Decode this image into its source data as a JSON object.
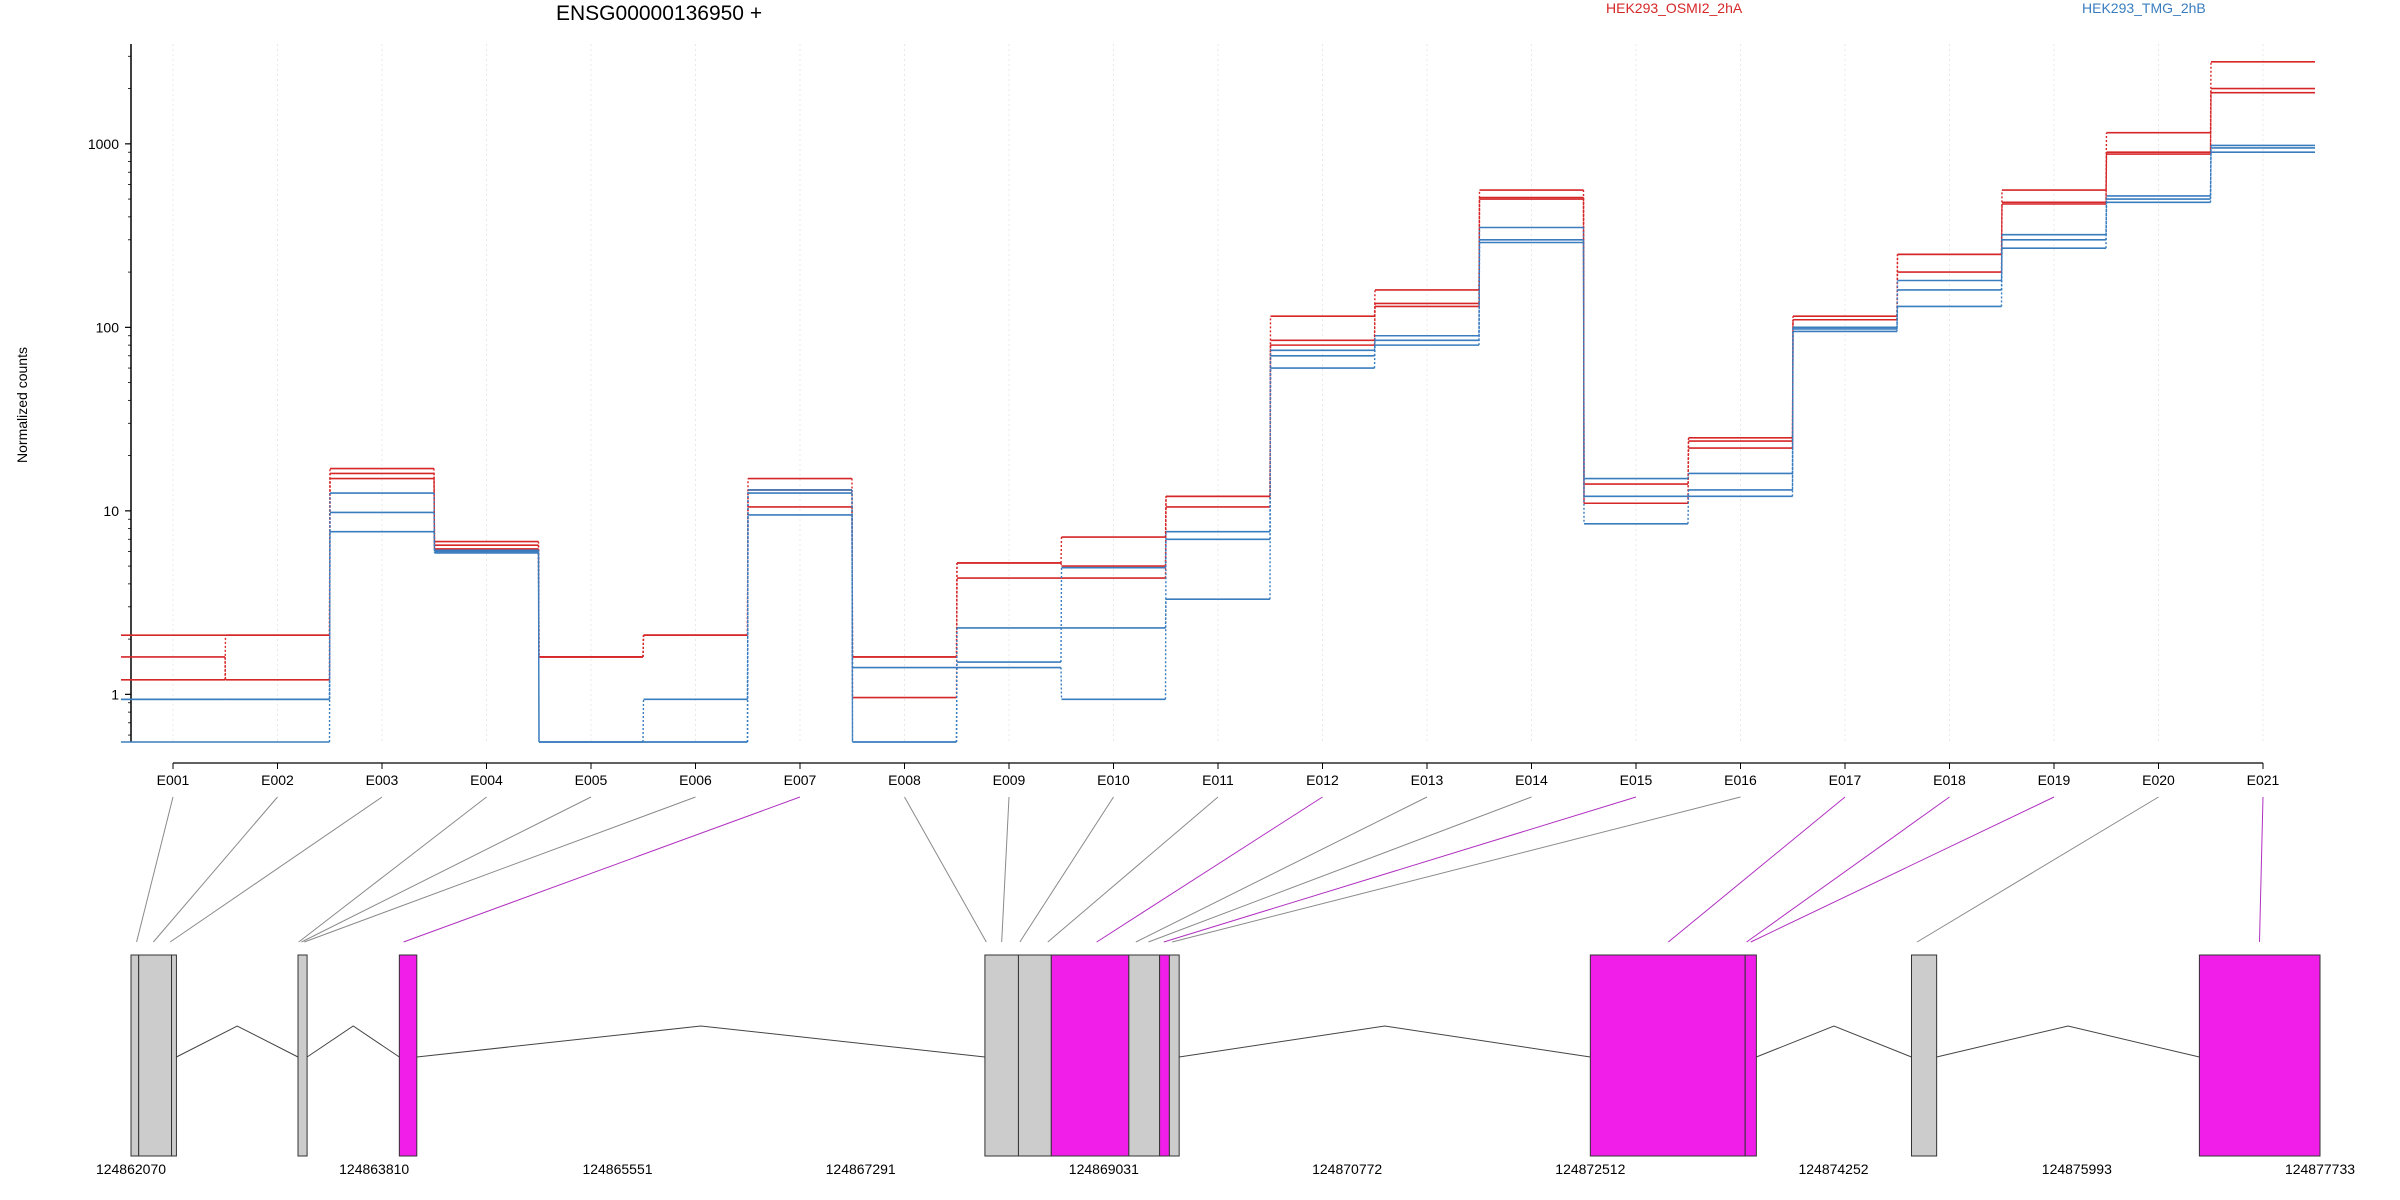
{
  "chart_data": {
    "type": "line",
    "title": "ENSG00000136950 +",
    "xlabel": "",
    "ylabel": "Normalized counts",
    "y_scale": "log",
    "ylim": [
      0.55,
      3500
    ],
    "y_ticks": [
      1,
      10,
      100,
      1000
    ],
    "y_tick_labels": [
      "1",
      "10",
      "100",
      "1000"
    ],
    "categories": [
      "E001",
      "E002",
      "E003",
      "E004",
      "E005",
      "E006",
      "E007",
      "E008",
      "E009",
      "E010",
      "E011",
      "E012",
      "E013",
      "E014",
      "E015",
      "E016",
      "E017",
      "E018",
      "E019",
      "E020",
      "E021"
    ],
    "grid": "vertical, at each exon",
    "legend": [
      {
        "label": "HEK293_OSMI2_2hA",
        "color": "#d62728"
      },
      {
        "label": "HEK293_TMG_2hB",
        "color": "#3a7dbf"
      }
    ],
    "series": [
      {
        "group": "HEK293_OSMI2_2hA",
        "color": "#d62728",
        "values": [
          1.6,
          1.2,
          15,
          6.2,
          1.6,
          2.1,
          13,
          0.96,
          4.3,
          4.3,
          10.5,
          80,
          135,
          510,
          11,
          22,
          110,
          200,
          470,
          880,
          1900
        ]
      },
      {
        "group": "HEK293_OSMI2_2hA",
        "color": "#d62728",
        "values": [
          2.1,
          2.1,
          17,
          6.8,
          1.6,
          2.1,
          15,
          1.6,
          5.2,
          7.2,
          12,
          115,
          160,
          560,
          14,
          25,
          115,
          250,
          560,
          1150,
          2800
        ]
      },
      {
        "group": "HEK293_OSMI2_2hA",
        "color": "#d62728",
        "values": [
          1.2,
          2.1,
          16,
          6.5,
          1.6,
          2.1,
          10.5,
          1.6,
          5.2,
          5.0,
          12,
          85,
          130,
          500,
          11,
          24,
          110,
          250,
          480,
          900,
          2000
        ]
      },
      {
        "group": "HEK293_TMG_2hB",
        "color": "#3a7dbf",
        "values": [
          0.94,
          0.94,
          12.5,
          6.0,
          0.55,
          0.55,
          12.5,
          0.55,
          1.5,
          4.9,
          7.7,
          70,
          90,
          290,
          12,
          12,
          95,
          160,
          300,
          520,
          950
        ]
      },
      {
        "group": "HEK293_TMG_2hB",
        "color": "#3a7dbf",
        "values": [
          0.55,
          0.55,
          7.7,
          5.9,
          0.55,
          0.94,
          9.5,
          0.55,
          2.3,
          2.3,
          3.3,
          60,
          80,
          300,
          8.5,
          13,
          98,
          130,
          270,
          480,
          900
        ]
      },
      {
        "group": "HEK293_TMG_2hB",
        "color": "#3a7dbf",
        "values": [
          0.94,
          0.94,
          9.8,
          6.1,
          0.55,
          0.55,
          13,
          1.4,
          1.4,
          0.94,
          7.0,
          75,
          85,
          350,
          15,
          16,
          100,
          180,
          320,
          500,
          980
        ]
      }
    ],
    "gene_model": {
      "coordinates_printed": [
        "124862070",
        "124863810",
        "124865551",
        "124867291",
        "124869031",
        "124870772",
        "124872512",
        "124874252",
        "124875993",
        "124877733"
      ],
      "range": [
        124862070,
        124877733
      ],
      "exons": [
        {
          "start": 124862070,
          "end": 124862125,
          "highlighted": false
        },
        {
          "start": 124862125,
          "end": 124862360,
          "highlighted": false
        },
        {
          "start": 124862360,
          "end": 124862395,
          "highlighted": false
        },
        {
          "start": 124863265,
          "end": 124863330,
          "highlighted": false
        },
        {
          "start": 124863990,
          "end": 124864115,
          "highlighted": true
        },
        {
          "start": 124868180,
          "end": 124868420,
          "highlighted": false
        },
        {
          "start": 124868420,
          "end": 124868655,
          "highlighted": false
        },
        {
          "start": 124868655,
          "end": 124869210,
          "highlighted": true
        },
        {
          "start": 124869210,
          "end": 124869430,
          "highlighted": false
        },
        {
          "start": 124869430,
          "end": 124869500,
          "highlighted": true
        },
        {
          "start": 124869500,
          "end": 124869570,
          "highlighted": false
        },
        {
          "start": 124872512,
          "end": 124873620,
          "highlighted": true
        },
        {
          "start": 124873620,
          "end": 124873700,
          "highlighted": true
        },
        {
          "start": 124874810,
          "end": 124874990,
          "highlighted": false
        },
        {
          "start": 124876870,
          "end": 124877733,
          "highlighted": true
        }
      ],
      "introns": [
        [
          124862395,
          124863265
        ],
        [
          124863330,
          124863990
        ],
        [
          124864115,
          124868180
        ],
        [
          124869570,
          124872512
        ],
        [
          124873700,
          124874810
        ],
        [
          124874990,
          124876870
        ]
      ],
      "exon_bin_links": [
        {
          "exon": "E001",
          "position": 124862110,
          "highlighted": false
        },
        {
          "exon": "E002",
          "position": 124862230,
          "highlighted": false
        },
        {
          "exon": "E003",
          "position": 124862350,
          "highlighted": false
        },
        {
          "exon": "E004",
          "position": 124863270,
          "highlighted": false
        },
        {
          "exon": "E005",
          "position": 124863290,
          "highlighted": false
        },
        {
          "exon": "E006",
          "position": 124863310,
          "highlighted": false
        },
        {
          "exon": "E007",
          "position": 124864020,
          "highlighted": true
        },
        {
          "exon": "E008",
          "position": 124868190,
          "highlighted": false
        },
        {
          "exon": "E009",
          "position": 124868300,
          "highlighted": false
        },
        {
          "exon": "E010",
          "position": 124868430,
          "highlighted": false
        },
        {
          "exon": "E011",
          "position": 124868630,
          "highlighted": false
        },
        {
          "exon": "E012",
          "position": 124868980,
          "highlighted": true
        },
        {
          "exon": "E013",
          "position": 124869260,
          "highlighted": false
        },
        {
          "exon": "E014",
          "position": 124869350,
          "highlighted": false
        },
        {
          "exon": "E015",
          "position": 124869460,
          "highlighted": true
        },
        {
          "exon": "E016",
          "position": 124869520,
          "highlighted": false
        },
        {
          "exon": "E017",
          "position": 124873070,
          "highlighted": true
        },
        {
          "exon": "E018",
          "position": 124873630,
          "highlighted": true
        },
        {
          "exon": "E019",
          "position": 124873660,
          "highlighted": true
        },
        {
          "exon": "E020",
          "position": 124874850,
          "highlighted": false
        },
        {
          "exon": "E021",
          "position": 124877300,
          "highlighted": true
        }
      ]
    }
  },
  "colors": {
    "series_a": "#d62728",
    "series_b": "#3a7dbf",
    "highlight_exon": "#f01ee8",
    "plain_exon": "#cccccc",
    "grid": "#e8e8e8"
  }
}
